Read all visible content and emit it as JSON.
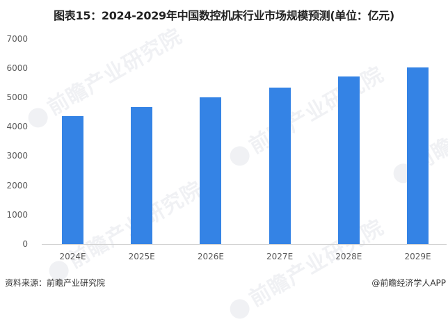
{
  "title": "图表15：2024-2029年中国数控机床行业市场规模预测(单位：亿元)",
  "watermark_text": "前瞻产业研究院",
  "footer": {
    "source": "资料来源：前瞻产业研究院",
    "credit": "@前瞻经济学人APP"
  },
  "colors": {
    "bar": "#3483e5",
    "axis": "#d0d0d0"
  },
  "y_ticks": [
    "7000",
    "6000",
    "5000",
    "4000",
    "3000",
    "2000",
    "1000",
    "0"
  ],
  "chart_data": {
    "type": "bar",
    "title": "图表15：2024-2029年中国数控机床行业市场规模预测(单位：亿元)",
    "xlabel": "",
    "ylabel": "",
    "unit": "亿元",
    "categories": [
      "2024E",
      "2025E",
      "2026E",
      "2027E",
      "2028E",
      "2029E"
    ],
    "values": [
      4350,
      4660,
      4990,
      5340,
      5720,
      6010
    ],
    "ylim": [
      0,
      7000
    ],
    "yticks": [
      0,
      1000,
      2000,
      3000,
      4000,
      5000,
      6000,
      7000
    ],
    "grid": false,
    "legend": null,
    "bar_color": "#3483e5"
  }
}
